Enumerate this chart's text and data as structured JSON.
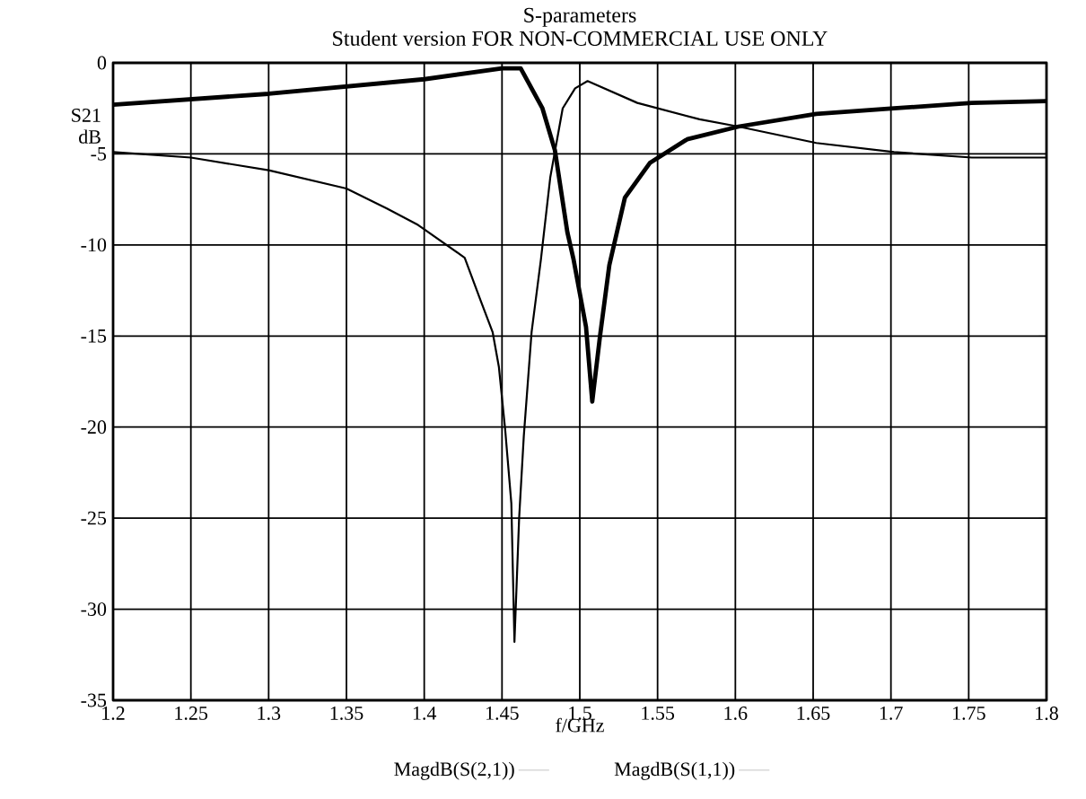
{
  "chart_data": {
    "type": "line",
    "title": "S-parameters",
    "subtitle": "Student version FOR NON-COMMERCIAL USE ONLY",
    "xlabel": "f/GHz",
    "ylabel": "S21 dB",
    "xlim": [
      1.2,
      1.8
    ],
    "xticks": [
      1.2,
      1.25,
      1.3,
      1.35,
      1.4,
      1.45,
      1.5,
      1.55,
      1.6,
      1.65,
      1.7,
      1.75,
      1.8
    ],
    "ylim": [
      -35,
      0
    ],
    "yticks": [
      -35,
      -30,
      -25,
      -20,
      -15,
      -10,
      -5,
      0
    ],
    "grid": true,
    "legend": "bottom",
    "series": [
      {
        "name": "MagdB(S(2,1))",
        "color": "#000000",
        "x": [
          1.2,
          1.3,
          1.4,
          1.45,
          1.462,
          1.476,
          1.484,
          1.492,
          1.496,
          1.504,
          1.508,
          1.513,
          1.519,
          1.529,
          1.545,
          1.569,
          1.602,
          1.652,
          1.702,
          1.752,
          1.8
        ],
        "values": [
          -2.3,
          -1.7,
          -0.9,
          -0.3,
          -0.3,
          -2.5,
          -4.8,
          -9.3,
          -10.8,
          -14.5,
          -18.6,
          -15,
          -11.1,
          -7.4,
          -5.5,
          -4.2,
          -3.5,
          -2.8,
          -2.5,
          -2.2,
          -2.1
        ]
      },
      {
        "name": "MagdB(S(1,1))",
        "color": "#000000",
        "x": [
          1.2,
          1.25,
          1.3,
          1.35,
          1.376,
          1.396,
          1.426,
          1.436,
          1.444,
          1.448,
          1.452,
          1.456,
          1.458,
          1.461,
          1.464,
          1.469,
          1.475,
          1.481,
          1.489,
          1.497,
          1.505,
          1.537,
          1.577,
          1.602,
          1.652,
          1.702,
          1.752,
          1.8
        ],
        "values": [
          -4.9,
          -5.2,
          -5.9,
          -6.9,
          -8.0,
          -8.9,
          -10.7,
          -13,
          -14.8,
          -16.7,
          -20.1,
          -24.2,
          -31.8,
          -25,
          -20.5,
          -14.8,
          -10.8,
          -6.3,
          -2.5,
          -1.4,
          -1.0,
          -2.2,
          -3.1,
          -3.5,
          -4.4,
          -4.9,
          -5.2,
          -5.2
        ]
      }
    ]
  }
}
